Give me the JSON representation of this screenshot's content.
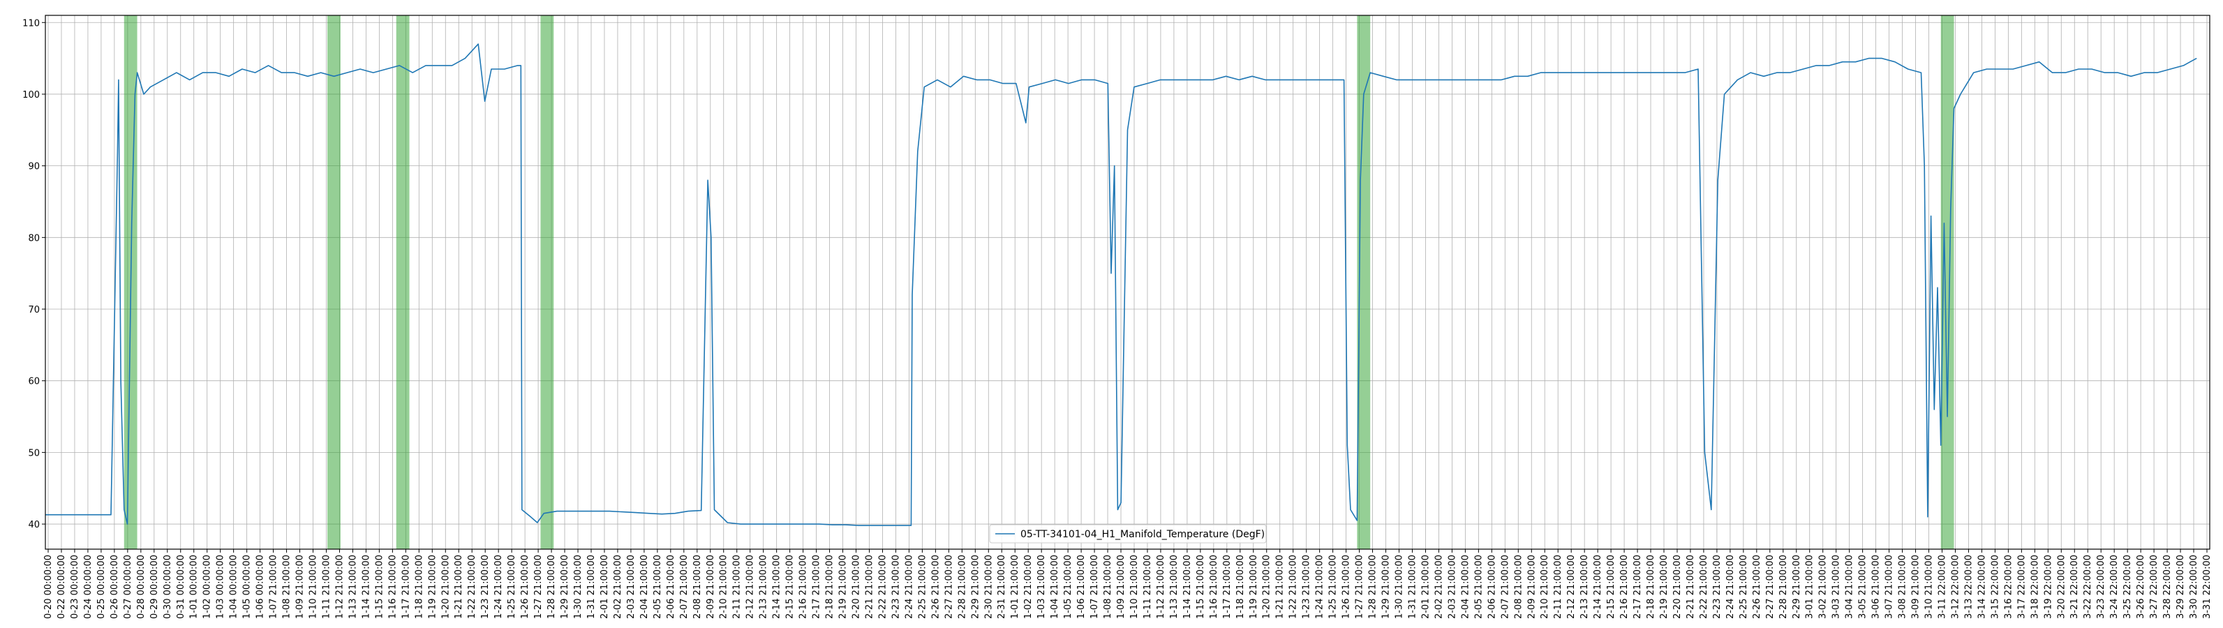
{
  "chart_data": {
    "type": "line",
    "title": "",
    "xlabel": "",
    "ylabel": "",
    "ylim": [
      36.5,
      111
    ],
    "yticks": [
      40,
      50,
      60,
      70,
      80,
      90,
      100,
      110
    ],
    "grid": true,
    "legend_position": "bottom-center",
    "colors": {
      "line": "#1f77b4",
      "band": "#2ca02c",
      "grid": "#b0b0b0"
    },
    "series": [
      {
        "name": "05-TT-34101-04_H1_Manifold_Temperature (DegF)",
        "points": [
          [
            "0-20",
            41.3
          ],
          [
            "0-21",
            41.3
          ],
          [
            "0-22",
            41.3
          ],
          [
            "0-23",
            41.3
          ],
          [
            "0-24",
            41.3
          ],
          [
            "0-25",
            41.3
          ],
          [
            "0-25 12:00",
            92
          ],
          [
            "0-25 14:00",
            102
          ],
          [
            "0-25 18:00",
            60
          ],
          [
            "0-26",
            42
          ],
          [
            "0-26 06:00",
            40
          ],
          [
            "0-26 14:00",
            82
          ],
          [
            "0-26 20:00",
            100
          ],
          [
            "0-27",
            103
          ],
          [
            "0-27 12:00",
            100
          ],
          [
            "0-28",
            101
          ],
          [
            "0-29",
            102
          ],
          [
            "0-30",
            103
          ],
          [
            "0-31",
            102
          ],
          [
            "1-01",
            103
          ],
          [
            "1-02",
            103
          ],
          [
            "1-03",
            102.5
          ],
          [
            "1-04",
            103.5
          ],
          [
            "1-05",
            103
          ],
          [
            "1-06",
            104
          ],
          [
            "1-07",
            103
          ],
          [
            "1-08",
            103
          ],
          [
            "1-09",
            102.5
          ],
          [
            "1-10",
            103
          ],
          [
            "1-11",
            102.5
          ],
          [
            "1-12",
            103
          ],
          [
            "1-13",
            103.5
          ],
          [
            "1-14",
            103
          ],
          [
            "1-15",
            103.5
          ],
          [
            "1-16",
            104
          ],
          [
            "1-17",
            103
          ],
          [
            "1-18",
            104
          ],
          [
            "1-19",
            104
          ],
          [
            "1-20",
            104
          ],
          [
            "1-21",
            105
          ],
          [
            "1-22",
            107
          ],
          [
            "1-22 12:00",
            99
          ],
          [
            "1-23",
            103.5
          ],
          [
            "1-24",
            103.5
          ],
          [
            "1-25",
            104
          ],
          [
            "1-25 06:00",
            104
          ],
          [
            "1-25 08:00",
            42
          ],
          [
            "1-26",
            41
          ],
          [
            "1-26 12:00",
            40.2
          ],
          [
            "1-27",
            41.5
          ],
          [
            "1-28",
            41.8
          ],
          [
            "1-29",
            41.8
          ],
          [
            "1-30",
            41.8
          ],
          [
            "1-31",
            41.8
          ],
          [
            "2-01",
            41.8
          ],
          [
            "2-02",
            41.7
          ],
          [
            "2-03",
            41.6
          ],
          [
            "2-04",
            41.5
          ],
          [
            "2-05",
            41.4
          ],
          [
            "2-06",
            41.5
          ],
          [
            "2-07",
            41.8
          ],
          [
            "2-08",
            41.9
          ],
          [
            "2-08 12:00",
            88
          ],
          [
            "2-08 18:00",
            80
          ],
          [
            "2-09",
            42
          ],
          [
            "2-10",
            40.2
          ],
          [
            "2-11",
            40
          ],
          [
            "2-12",
            40
          ],
          [
            "2-13",
            40
          ],
          [
            "2-14",
            40
          ],
          [
            "2-15",
            40
          ],
          [
            "2-16",
            40
          ],
          [
            "2-17",
            40
          ],
          [
            "2-18",
            39.9
          ],
          [
            "2-19",
            39.9
          ],
          [
            "2-20",
            39.8
          ],
          [
            "2-21",
            39.8
          ],
          [
            "2-22",
            39.8
          ],
          [
            "2-23",
            39.8
          ],
          [
            "2-24",
            39.8
          ],
          [
            "2-24 02:00",
            72
          ],
          [
            "2-24 12:00",
            92
          ],
          [
            "2-25",
            101
          ],
          [
            "2-26",
            102
          ],
          [
            "2-27",
            101
          ],
          [
            "2-28",
            102.5
          ],
          [
            "2-29",
            102
          ],
          [
            "2-30",
            102
          ],
          [
            "2-31",
            101.5
          ],
          [
            "1-01 B",
            101.5
          ],
          [
            "1-01 B 18:00",
            96
          ],
          [
            "1-02 B",
            101
          ],
          [
            "1-03 B",
            101.5
          ],
          [
            "1-04 B",
            102
          ],
          [
            "1-05 B",
            101.5
          ],
          [
            "1-06 B",
            102
          ],
          [
            "1-07 B",
            102
          ],
          [
            "1-08 B",
            101.5
          ],
          [
            "1-08 B 06:00",
            75
          ],
          [
            "1-08 B 12:00",
            90
          ],
          [
            "1-08 B 18:00",
            42
          ],
          [
            "1-09 B",
            43
          ],
          [
            "1-09 B 12:00",
            95
          ],
          [
            "1-10 B",
            101
          ],
          [
            "1-11 B",
            101.5
          ],
          [
            "1-12 B",
            102
          ],
          [
            "1-13 B",
            102
          ],
          [
            "1-14 B",
            102
          ],
          [
            "1-15 B",
            102
          ],
          [
            "1-16 B",
            102
          ],
          [
            "1-17 B",
            102.5
          ],
          [
            "1-18 B",
            102
          ],
          [
            "1-19 B",
            102.5
          ],
          [
            "1-20 B",
            102
          ],
          [
            "1-21 B",
            102
          ],
          [
            "1-22 B",
            102
          ],
          [
            "1-23 B",
            102
          ],
          [
            "1-24 B",
            102
          ],
          [
            "1-25 B",
            102
          ],
          [
            "1-26 B",
            102
          ],
          [
            "1-26 B 06:00",
            51
          ],
          [
            "1-26 B 12:00",
            42
          ],
          [
            "1-27 B",
            40.5
          ],
          [
            "1-27 B 06:00",
            88
          ],
          [
            "1-27 B 12:00",
            100
          ],
          [
            "1-28 B",
            103
          ],
          [
            "1-29 B",
            102.5
          ],
          [
            "1-30 B",
            102
          ],
          [
            "1-31 B",
            102
          ],
          [
            "2-01 B",
            102
          ],
          [
            "2-02 B",
            102
          ],
          [
            "2-03 B",
            102
          ],
          [
            "2-04 B",
            102
          ],
          [
            "2-05 B",
            102
          ],
          [
            "2-06 B",
            102
          ],
          [
            "2-07 B",
            102
          ],
          [
            "2-08 B",
            102.5
          ],
          [
            "2-09 B",
            102.5
          ],
          [
            "2-10 B",
            103
          ],
          [
            "2-11 B",
            103
          ],
          [
            "2-12 B",
            103
          ],
          [
            "2-13 B",
            103
          ],
          [
            "2-14 B",
            103
          ],
          [
            "2-15 B",
            103
          ],
          [
            "2-16 B",
            103
          ],
          [
            "2-17 B",
            103
          ],
          [
            "2-18 B",
            103
          ],
          [
            "2-19 B",
            103
          ],
          [
            "2-20 B",
            103
          ],
          [
            "2-21 B",
            103
          ],
          [
            "2-22 B",
            103.5
          ],
          [
            "2-22 B 12:00",
            50
          ],
          [
            "2-23 B",
            42
          ],
          [
            "2-23 B 12:00",
            88
          ],
          [
            "2-24 B",
            100
          ],
          [
            "2-25 B",
            102
          ],
          [
            "2-26 B",
            103
          ],
          [
            "2-27 B",
            102.5
          ],
          [
            "2-28 B",
            103
          ],
          [
            "2-29 B",
            103
          ],
          [
            "3-01",
            103.5
          ],
          [
            "3-02",
            104
          ],
          [
            "3-03",
            104
          ],
          [
            "3-04",
            104.5
          ],
          [
            "3-05",
            104.5
          ],
          [
            "3-06",
            105
          ],
          [
            "3-07",
            105
          ],
          [
            "3-08",
            104.5
          ],
          [
            "3-09",
            103.5
          ],
          [
            "3-10",
            103
          ],
          [
            "3-10 06:00",
            90
          ],
          [
            "3-10 12:00",
            41
          ],
          [
            "3-10 18:00",
            83
          ],
          [
            "3-11",
            56
          ],
          [
            "3-11 06:00",
            73
          ],
          [
            "3-11 12:00",
            51
          ],
          [
            "3-11 18:00",
            82
          ],
          [
            "3-12",
            55
          ],
          [
            "3-12 06:00",
            84
          ],
          [
            "3-12 12:00",
            98
          ],
          [
            "3-13",
            100
          ],
          [
            "3-14",
            103
          ],
          [
            "3-15",
            103.5
          ],
          [
            "3-16",
            103.5
          ],
          [
            "3-17",
            103.5
          ],
          [
            "3-18",
            104
          ],
          [
            "3-19",
            104.5
          ],
          [
            "3-20",
            103
          ],
          [
            "3-21",
            103
          ],
          [
            "3-22",
            103.5
          ],
          [
            "3-23",
            103.5
          ],
          [
            "3-24",
            103
          ],
          [
            "3-25",
            103
          ],
          [
            "3-26",
            102.5
          ],
          [
            "3-27",
            103
          ],
          [
            "3-28",
            103
          ],
          [
            "3-29",
            103.5
          ],
          [
            "3-30",
            104
          ],
          [
            "3-30 12:00",
            104.5
          ],
          [
            "3-31",
            105
          ]
        ]
      }
    ],
    "x_tick_labels": [
      "0-20 00:00:00",
      "0-22 00:00:00",
      "0-23 00:00:00",
      "0-24 00:00:00",
      "0-25 00:00:00",
      "0-26 00:00:00",
      "0-27 00:00:00",
      "0-28 00:00:00",
      "0-29 00:00:00",
      "0-30 00:00:00",
      "0-31 00:00:00",
      "1-01 00:00:00",
      "1-02 00:00:00",
      "1-03 00:00:00",
      "1-04 00:00:00",
      "1-05 00:00:00",
      "1-06 00:00:00",
      "1-07 21:00:00",
      "1-08 21:00:00",
      "1-09 21:00:00",
      "1-10 21:00:00",
      "1-11 21:00:00",
      "1-12 21:00:00",
      "1-13 21:00:00",
      "1-14 21:00:00",
      "1-15 21:00:00",
      "1-16 21:00:00",
      "1-17 21:00:00",
      "1-18 21:00:00",
      "1-19 21:00:00",
      "1-20 21:00:00",
      "1-21 21:00:00",
      "1-22 21:00:00",
      "1-23 21:00:00",
      "1-24 21:00:00",
      "1-25 21:00:00",
      "1-26 21:00:00",
      "1-27 21:00:00",
      "1-28 21:00:00",
      "1-29 21:00:00",
      "1-30 21:00:00",
      "1-31 21:00:00",
      "2-01 21:00:00",
      "2-02 21:00:00",
      "2-03 21:00:00",
      "2-04 21:00:00",
      "2-05 21:00:00",
      "2-06 21:00:00",
      "2-07 21:00:00",
      "2-08 21:00:00",
      "2-09 21:00:00",
      "2-10 21:00:00",
      "2-11 21:00:00",
      "2-12 21:00:00",
      "2-13 21:00:00",
      "2-14 21:00:00",
      "2-15 21:00:00",
      "2-16 21:00:00",
      "2-17 21:00:00",
      "2-18 21:00:00",
      "2-19 21:00:00",
      "2-20 21:00:00",
      "2-21 21:00:00",
      "2-22 21:00:00",
      "2-23 21:00:00",
      "2-24 21:00:00",
      "2-25 21:00:00",
      "2-26 21:00:00",
      "2-27 21:00:00",
      "2-28 21:00:00",
      "2-29 21:00:00",
      "2-30 21:00:00",
      "2-31 21:00:00",
      "1-01 21:00:00",
      "1-02 21:00:00",
      "1-03 21:00:00",
      "1-04 21:00:00",
      "1-05 21:00:00",
      "1-06 21:00:00",
      "1-07 21:00:00",
      "1-08 21:00:00",
      "1-09 21:00:00",
      "1-10 21:00:00",
      "1-11 21:00:00",
      "1-12 21:00:00",
      "1-13 21:00:00",
      "1-14 21:00:00",
      "1-15 21:00:00",
      "1-16 21:00:00",
      "1-17 21:00:00",
      "1-18 21:00:00",
      "1-19 21:00:00",
      "1-20 21:00:00",
      "1-21 21:00:00",
      "1-22 21:00:00",
      "1-23 21:00:00",
      "1-24 21:00:00",
      "1-25 21:00:00",
      "1-26 21:00:00",
      "1-27 21:00:00",
      "1-28 21:00:00",
      "1-29 21:00:00",
      "1-30 21:00:00",
      "1-31 21:00:00",
      "2-01 21:00:00",
      "2-02 21:00:00",
      "2-03 21:00:00",
      "2-04 21:00:00",
      "2-05 21:00:00",
      "2-06 21:00:00",
      "2-07 21:00:00",
      "2-08 21:00:00",
      "2-09 21:00:00",
      "2-10 21:00:00",
      "2-11 21:00:00",
      "2-12 21:00:00",
      "2-13 21:00:00",
      "2-14 21:00:00",
      "2-15 21:00:00",
      "2-16 21:00:00",
      "2-17 21:00:00",
      "2-18 21:00:00",
      "2-19 21:00:00",
      "2-20 21:00:00",
      "2-21 21:00:00",
      "2-22 21:00:00",
      "2-23 21:00:00",
      "2-24 21:00:00",
      "2-25 21:00:00",
      "2-26 21:00:00",
      "2-27 21:00:00",
      "2-28 21:00:00",
      "2-29 21:00:00",
      "3-01 21:00:00",
      "3-02 21:00:00",
      "3-03 21:00:00",
      "3-04 21:00:00",
      "3-05 21:00:00",
      "3-06 21:00:00",
      "3-07 21:00:00",
      "3-08 21:00:00",
      "3-09 21:00:00",
      "3-10 21:00:00",
      "3-11 22:00:00",
      "3-12 22:00:00",
      "3-13 22:00:00",
      "3-14 22:00:00",
      "3-15 22:00:00",
      "3-16 22:00:00",
      "3-17 22:00:00",
      "3-18 22:00:00",
      "3-19 22:00:00",
      "3-20 22:00:00",
      "3-21 22:00:00",
      "3-22 22:00:00",
      "3-23 22:00:00",
      "3-24 22:00:00",
      "3-25 22:00:00",
      "3-26 22:00:00",
      "3-27 22:00:00",
      "3-28 22:00:00",
      "3-29 22:00:00",
      "3-30 22:00:00",
      "3-31 22:00:00"
    ],
    "highlight_bands": [
      [
        "0-26 00:00",
        "0-27 00:00"
      ],
      [
        "1-10 12:00",
        "1-11 12:00"
      ],
      [
        "1-15 18:00",
        "1-16 18:00"
      ],
      [
        "1-26 18:00",
        "1-27 18:00"
      ],
      [
        "1-27 B 00:00",
        "1-28 B 00:00"
      ],
      [
        "3-11 12:00",
        "3-12 12:00"
      ]
    ]
  }
}
